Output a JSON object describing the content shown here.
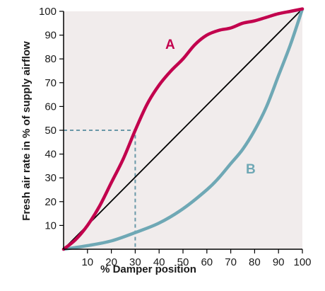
{
  "chart_data": {
    "type": "line",
    "title": "",
    "xlabel": "% Damper position",
    "ylabel": "Fresh air rate in % of supply airflow",
    "xlim": [
      0,
      100
    ],
    "ylim": [
      0,
      100
    ],
    "x_ticks": [
      "10",
      "20",
      "30",
      "40",
      "50",
      "60",
      "70",
      "80",
      "90",
      "100"
    ],
    "y_ticks": [
      "10",
      "20",
      "30",
      "40",
      "50",
      "60",
      "70",
      "80",
      "90",
      "100"
    ],
    "grid": false,
    "background_color": "#f1ecec",
    "series": [
      {
        "name": "A",
        "color": "#c2004d",
        "points": [
          [
            0,
            0
          ],
          [
            5,
            4
          ],
          [
            10,
            10
          ],
          [
            15,
            18
          ],
          [
            20,
            28
          ],
          [
            25,
            38
          ],
          [
            30,
            50
          ],
          [
            35,
            61
          ],
          [
            40,
            69
          ],
          [
            45,
            75
          ],
          [
            50,
            80
          ],
          [
            55,
            86
          ],
          [
            60,
            90
          ],
          [
            65,
            92
          ],
          [
            70,
            93
          ],
          [
            75,
            95
          ],
          [
            80,
            96
          ],
          [
            85,
            97.5
          ],
          [
            90,
            99
          ],
          [
            95,
            100
          ],
          [
            100,
            101
          ]
        ]
      },
      {
        "name": "B",
        "color": "#6fa8b5",
        "points": [
          [
            0,
            0
          ],
          [
            10,
            1.5
          ],
          [
            20,
            3.5
          ],
          [
            30,
            7
          ],
          [
            40,
            11
          ],
          [
            50,
            17
          ],
          [
            60,
            25
          ],
          [
            65,
            30
          ],
          [
            70,
            36
          ],
          [
            75,
            42
          ],
          [
            80,
            50
          ],
          [
            85,
            60
          ],
          [
            90,
            73
          ],
          [
            95,
            86
          ],
          [
            100,
            101
          ]
        ]
      },
      {
        "name": "",
        "color": "#000000",
        "points": [
          [
            0,
            0
          ],
          [
            100,
            101
          ]
        ]
      }
    ],
    "reference_lines": [
      {
        "style": "dashed",
        "color": "#6a98a8",
        "points": [
          [
            0,
            50
          ],
          [
            30,
            50
          ],
          [
            30,
            0
          ]
        ]
      }
    ]
  }
}
